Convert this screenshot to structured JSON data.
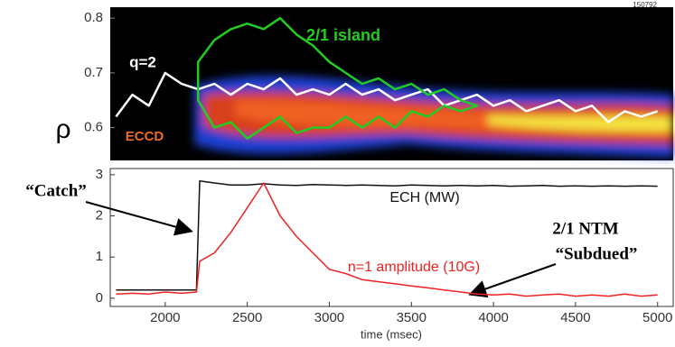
{
  "chart_data": [
    {
      "type": "line",
      "ylabel": "ρ",
      "annotations": [
        "150792",
        "ECCD"
      ],
      "xlim": [
        1665,
        5095
      ],
      "ylim": [
        0.54,
        0.82
      ],
      "yticks": [
        0.6,
        0.7,
        0.8
      ],
      "series": [
        {
          "name": "q=2",
          "color": "#ffffff",
          "x": [
            1700,
            1800,
            1900,
            2000,
            2100,
            2200,
            2300,
            2400,
            2500,
            2600,
            2700,
            2800,
            2900,
            3000,
            3100,
            3200,
            3300,
            3400,
            3500,
            3600,
            3700,
            3800,
            3900,
            4000,
            4100,
            4200,
            4300,
            4400,
            4500,
            4600,
            4700,
            4800,
            4900,
            5000
          ],
          "values": [
            0.62,
            0.66,
            0.64,
            0.7,
            0.68,
            0.67,
            0.68,
            0.66,
            0.68,
            0.67,
            0.69,
            0.66,
            0.67,
            0.66,
            0.68,
            0.66,
            0.67,
            0.65,
            0.66,
            0.67,
            0.64,
            0.65,
            0.66,
            0.64,
            0.65,
            0.63,
            0.64,
            0.65,
            0.63,
            0.64,
            0.61,
            0.63,
            0.62,
            0.63
          ]
        },
        {
          "name": "2/1 island",
          "color": "#22cc22",
          "x": [
            2200,
            2300,
            2400,
            2500,
            2600,
            2700,
            2800,
            2900,
            3000,
            3100,
            3200,
            3300,
            3400,
            3500,
            3600,
            3700,
            3800,
            3900,
            3900,
            3800,
            3700,
            3600,
            3500,
            3400,
            3300,
            3200,
            3100,
            3000,
            2900,
            2800,
            2700,
            2600,
            2500,
            2400,
            2300,
            2200
          ],
          "values": [
            0.72,
            0.76,
            0.78,
            0.79,
            0.78,
            0.8,
            0.77,
            0.75,
            0.72,
            0.7,
            0.68,
            0.69,
            0.67,
            0.68,
            0.66,
            0.67,
            0.65,
            0.64,
            0.64,
            0.63,
            0.64,
            0.62,
            0.63,
            0.6,
            0.62,
            0.6,
            0.62,
            0.6,
            0.6,
            0.59,
            0.62,
            0.6,
            0.58,
            0.61,
            0.6,
            0.65
          ]
        }
      ]
    },
    {
      "type": "line",
      "xlabel": "time (msec)",
      "annotations": [
        "“Catch”",
        "2/1 NTM",
        "“Subdued”"
      ],
      "xlim": [
        1665,
        5095
      ],
      "ylim": [
        -0.2,
        3.15
      ],
      "xticks": [
        2000,
        2500,
        3000,
        3500,
        4000,
        4500,
        5000
      ],
      "yticks": [
        0,
        1,
        2,
        3
      ],
      "series": [
        {
          "name": "ECH (MW)",
          "color": "#111111",
          "x": [
            1700,
            1800,
            1900,
            2000,
            2100,
            2190,
            2210,
            2300,
            2400,
            2500,
            2600,
            2700,
            2800,
            2900,
            3000,
            3100,
            3200,
            3300,
            3400,
            3500,
            3600,
            3700,
            3800,
            3900,
            4000,
            4100,
            4200,
            4300,
            4400,
            4500,
            4600,
            4700,
            4800,
            4900,
            5000
          ],
          "values": [
            0.2,
            0.2,
            0.2,
            0.2,
            0.2,
            0.2,
            2.85,
            2.8,
            2.75,
            2.75,
            2.78,
            2.75,
            2.74,
            2.76,
            2.75,
            2.74,
            2.75,
            2.74,
            2.73,
            2.75,
            2.74,
            2.73,
            2.74,
            2.73,
            2.74,
            2.72,
            2.73,
            2.74,
            2.72,
            2.73,
            2.72,
            2.73,
            2.72,
            2.73,
            2.72
          ]
        },
        {
          "name": "n=1 amplitude (10G)",
          "color": "#ee2222",
          "x": [
            1700,
            1800,
            1900,
            2000,
            2100,
            2190,
            2210,
            2300,
            2400,
            2500,
            2600,
            2700,
            2800,
            2900,
            3000,
            3100,
            3200,
            3300,
            3400,
            3500,
            3600,
            3700,
            3800,
            3900,
            4000,
            4100,
            4200,
            4300,
            4400,
            4500,
            4600,
            4700,
            4800,
            4900,
            5000
          ],
          "values": [
            0.1,
            0.12,
            0.1,
            0.15,
            0.12,
            0.15,
            0.9,
            1.1,
            1.6,
            2.2,
            2.8,
            2.0,
            1.5,
            1.1,
            0.7,
            0.6,
            0.45,
            0.4,
            0.35,
            0.3,
            0.25,
            0.2,
            0.15,
            0.1,
            0.08,
            0.1,
            0.05,
            0.08,
            0.1,
            0.05,
            0.08,
            0.05,
            0.1,
            0.05,
            0.08
          ]
        }
      ]
    }
  ]
}
